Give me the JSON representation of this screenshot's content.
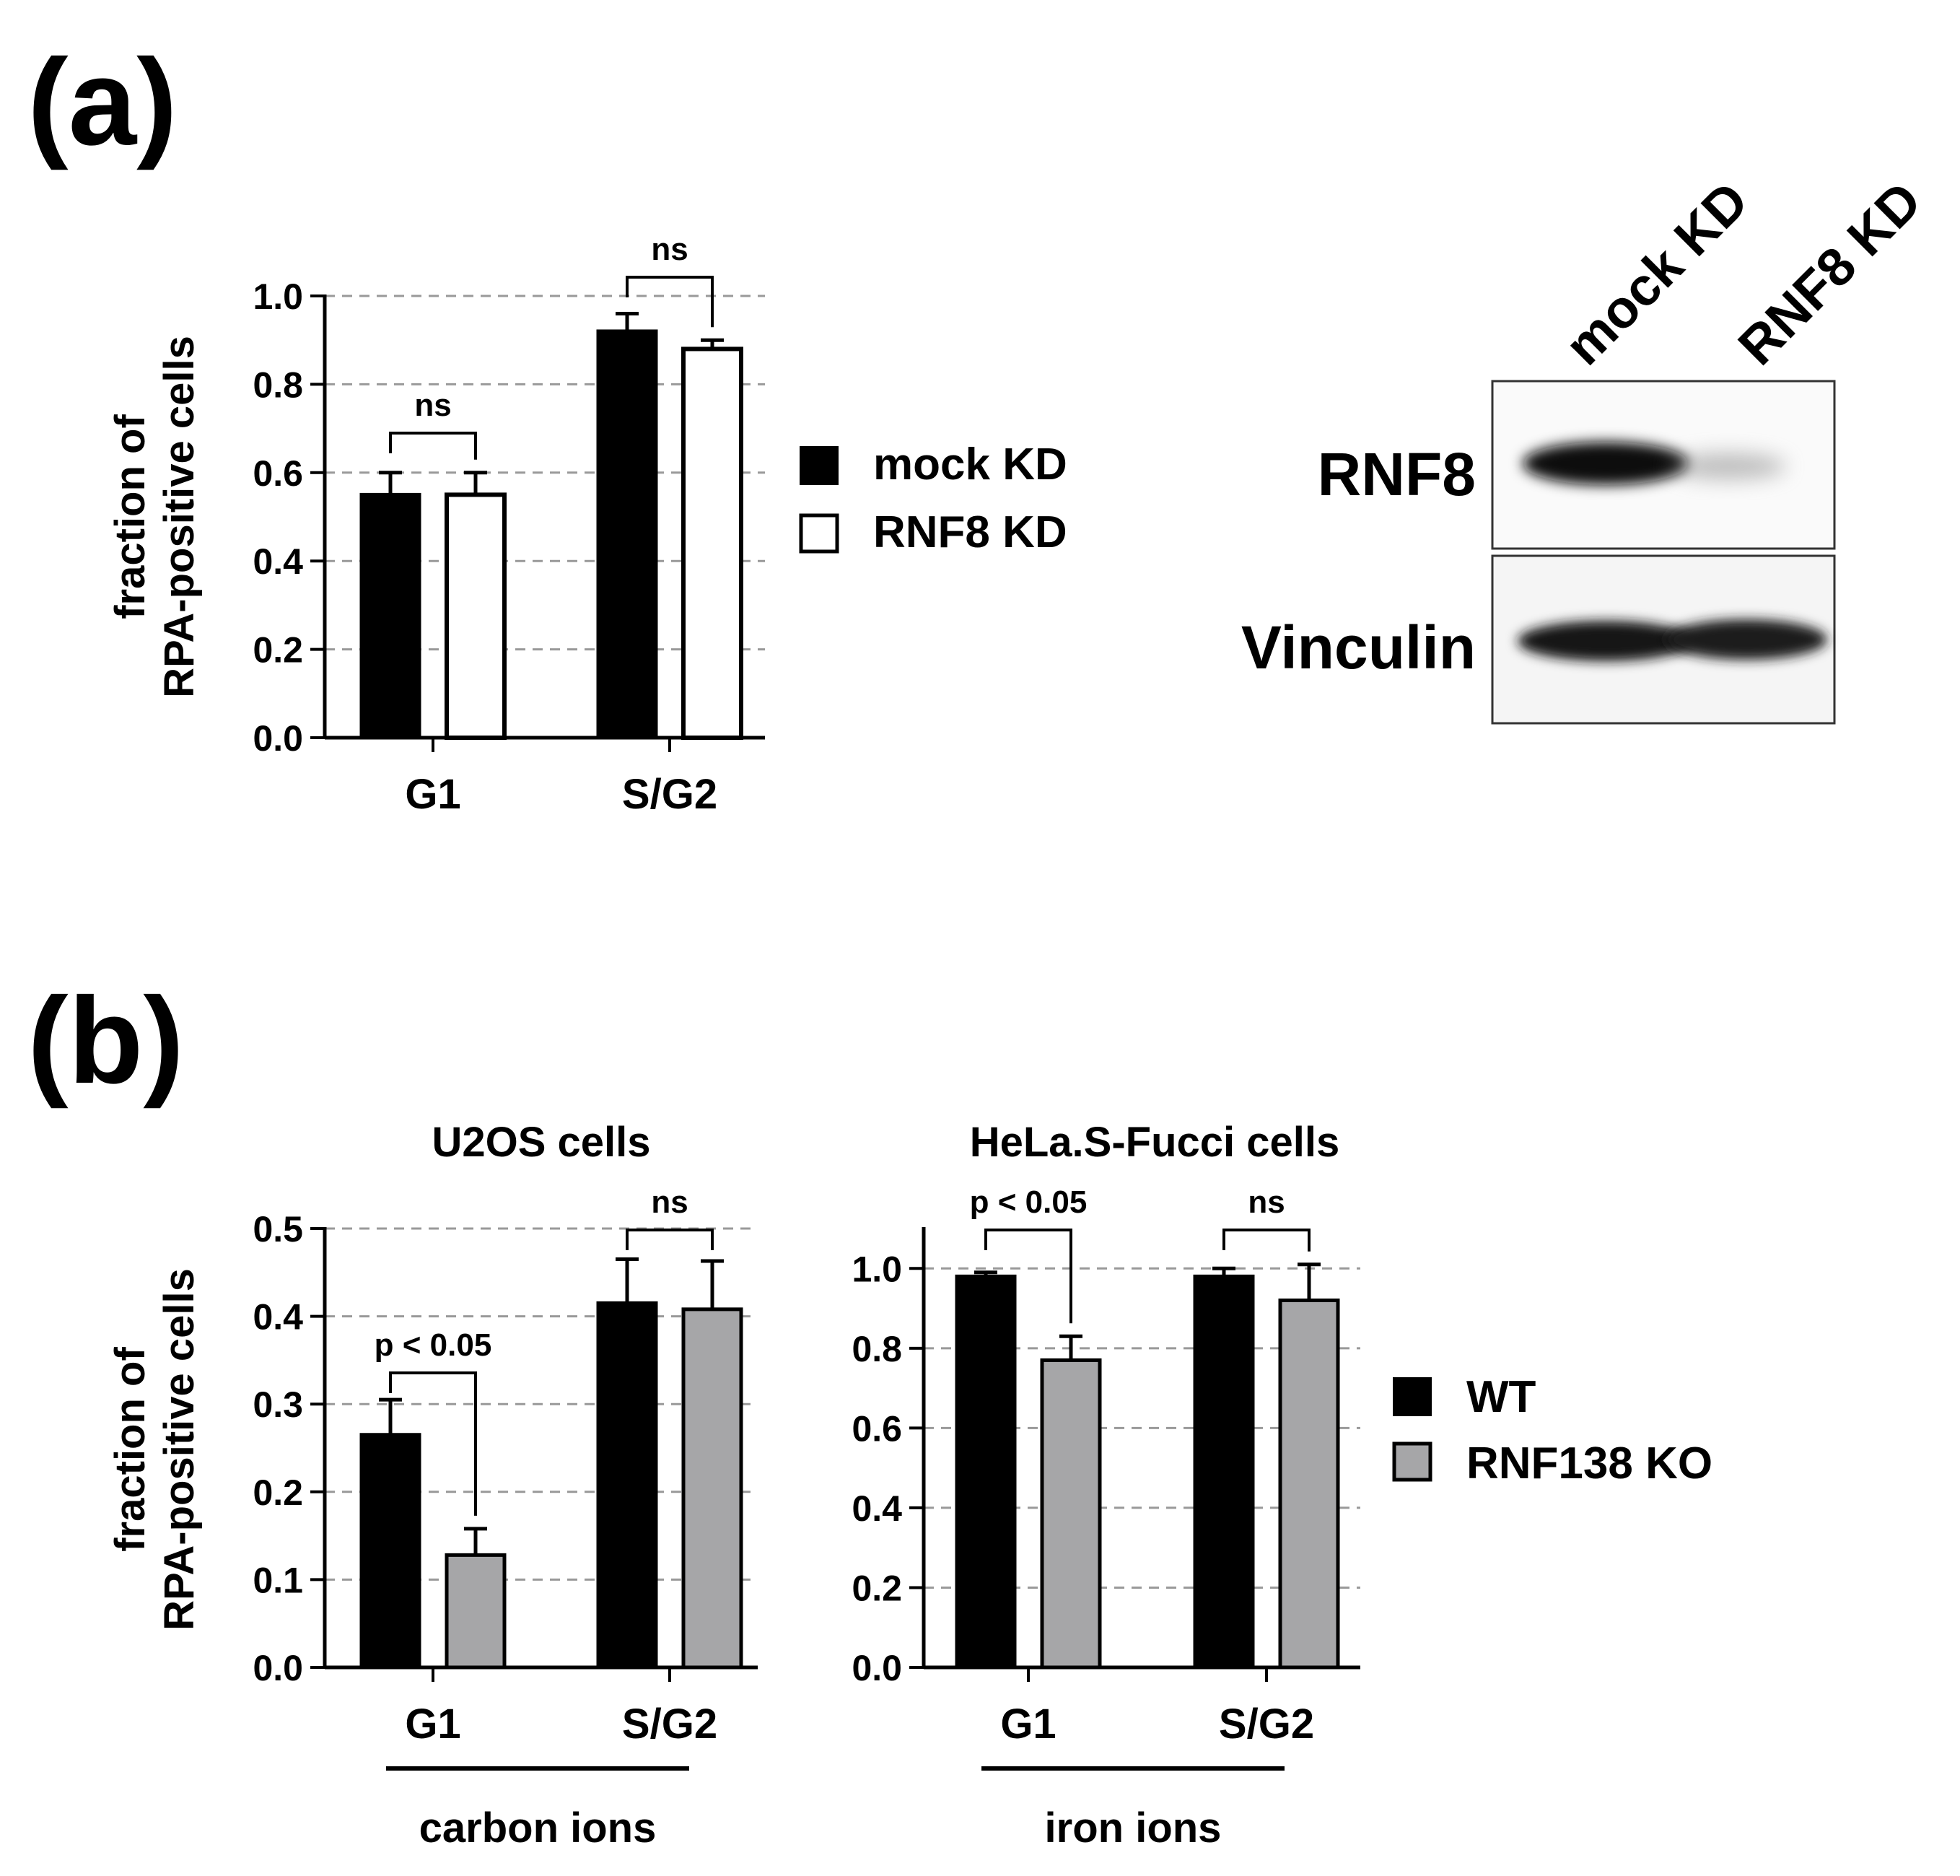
{
  "panel_a": {
    "label": "(a)"
  },
  "panel_b": {
    "label": "(b)"
  },
  "western_blot": {
    "lanes": [
      "mock KD",
      "RNF8 KD"
    ],
    "bands": [
      "RNF8",
      "Vinculin"
    ]
  },
  "colors": {
    "black": "#000000",
    "white": "#ffffff",
    "gray": "#a6a6a8",
    "grid": "#999999"
  },
  "legend_a": [
    "mock KD",
    "RNF8 KD"
  ],
  "legend_b": [
    "WT",
    "RNF138 KO"
  ],
  "chart_data": [
    {
      "id": "a",
      "type": "bar",
      "title": "",
      "xlabel": "",
      "ylabel": "fraction of\nRPA-positive cells",
      "ylim": [
        0,
        1.0
      ],
      "yticks": [
        "0.0",
        "0.2",
        "0.4",
        "0.6",
        "0.8",
        "1.0"
      ],
      "categories": [
        "G1",
        "S/G2"
      ],
      "grid": "dashed horizontal",
      "legend_position": "right",
      "series": [
        {
          "name": "mock KD",
          "color": "#000000",
          "values": [
            0.55,
            0.92
          ],
          "errors": [
            0.05,
            0.04
          ]
        },
        {
          "name": "RNF8 KD",
          "color": "#ffffff",
          "values": [
            0.55,
            0.88
          ],
          "errors": [
            0.05,
            0.02
          ]
        }
      ],
      "annotations": [
        {
          "category": "G1",
          "text": "ns"
        },
        {
          "category": "S/G2",
          "text": "ns"
        }
      ]
    },
    {
      "id": "b1",
      "type": "bar",
      "title": "U2OS cells",
      "xlabel": "carbon ions",
      "ylabel": "fraction of\nRPA-positive cells",
      "ylim": [
        0,
        0.5
      ],
      "yticks": [
        "0.0",
        "0.1",
        "0.2",
        "0.3",
        "0.4",
        "0.5"
      ],
      "categories": [
        "G1",
        "S/G2"
      ],
      "grid": "dashed horizontal",
      "series": [
        {
          "name": "WT",
          "color": "#000000",
          "values": [
            0.265,
            0.415
          ],
          "errors": [
            0.04,
            0.05
          ]
        },
        {
          "name": "RNF138 KO",
          "color": "#a6a6a8",
          "values": [
            0.128,
            0.408
          ],
          "errors": [
            0.03,
            0.055
          ]
        }
      ],
      "annotations": [
        {
          "category": "G1",
          "text": "p < 0.05"
        },
        {
          "category": "S/G2",
          "text": "ns"
        }
      ]
    },
    {
      "id": "b2",
      "type": "bar",
      "title": "HeLa.S-Fucci cells",
      "xlabel": "iron ions",
      "ylabel": "",
      "ylim": [
        0,
        1.1
      ],
      "yticks": [
        "0.0",
        "0.2",
        "0.4",
        "0.6",
        "0.8",
        "1.0"
      ],
      "categories": [
        "G1",
        "S/G2"
      ],
      "grid": "dashed horizontal",
      "legend_position": "right",
      "series": [
        {
          "name": "WT",
          "color": "#000000",
          "values": [
            0.98,
            0.98
          ],
          "errors": [
            0.01,
            0.02
          ]
        },
        {
          "name": "RNF138 KO",
          "color": "#a6a6a8",
          "values": [
            0.77,
            0.92
          ],
          "errors": [
            0.06,
            0.09
          ]
        }
      ],
      "annotations": [
        {
          "category": "G1",
          "text": "p < 0.05"
        },
        {
          "category": "S/G2",
          "text": "ns"
        }
      ]
    }
  ]
}
